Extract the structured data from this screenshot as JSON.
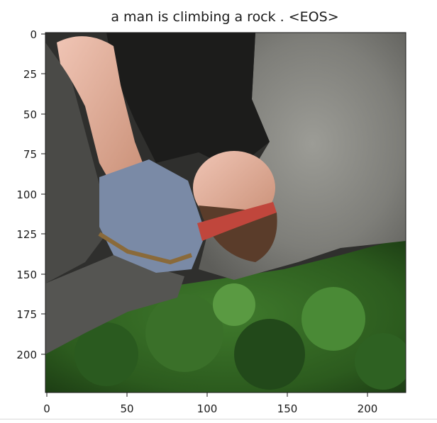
{
  "figure": {
    "title": "a man is climbing a rock . <EOS>",
    "image_description_alt": "",
    "x_ticks": [
      "0",
      "50",
      "100",
      "150",
      "200"
    ],
    "y_ticks": [
      "0",
      "25",
      "50",
      "75",
      "100",
      "125",
      "150",
      "175",
      "200"
    ],
    "x_tick_values": [
      0,
      50,
      100,
      150,
      200
    ],
    "y_tick_values": [
      0,
      25,
      50,
      75,
      100,
      125,
      150,
      175,
      200
    ],
    "image_size": [
      224,
      224
    ]
  }
}
